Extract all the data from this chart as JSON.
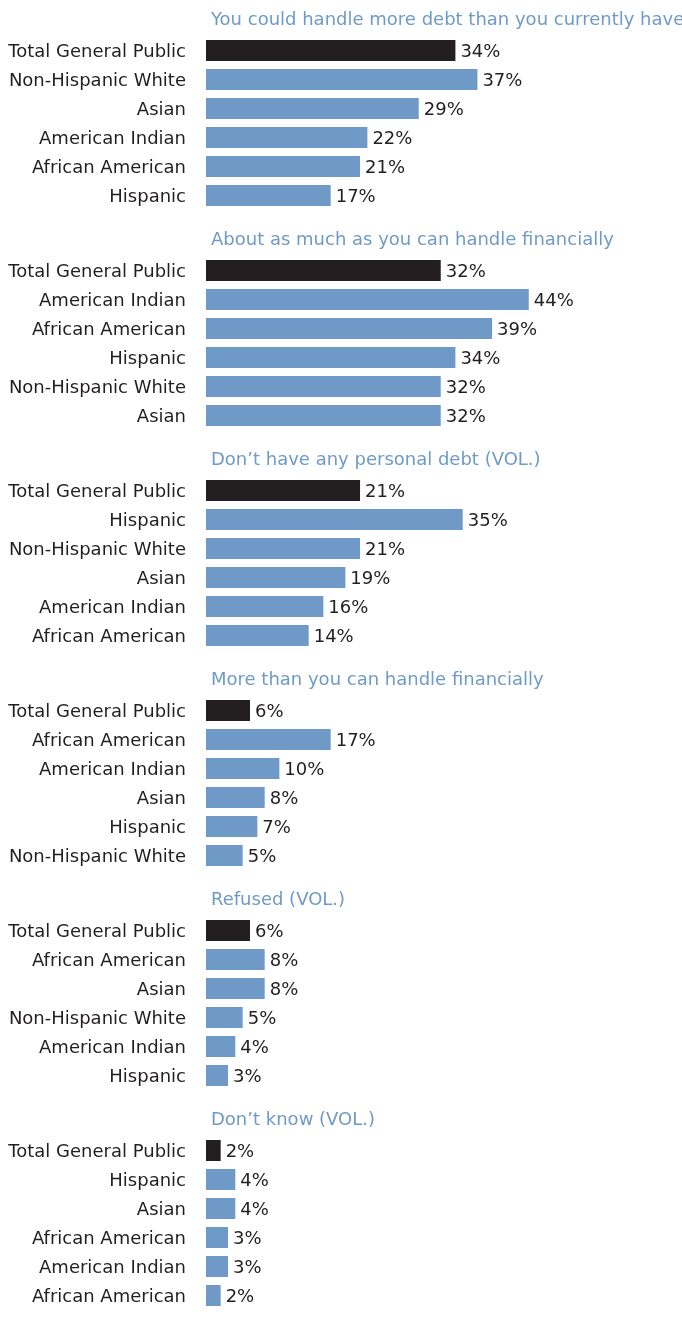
{
  "chart_data": [
    {
      "type": "bar",
      "orientation": "horizontal",
      "title": "You could handle more debt than you currently have",
      "categories": [
        "Total General Public",
        "Non-Hispanic White",
        "Asian",
        "American Indian",
        "African American",
        "Hispanic"
      ],
      "values": [
        34,
        37,
        29,
        22,
        21,
        17
      ],
      "colors": [
        "#231f20",
        "#6f9ac8",
        "#6f9ac8",
        "#6f9ac8",
        "#6f9ac8",
        "#6f9ac8"
      ],
      "value_labels": [
        "34%",
        "37%",
        "29%",
        "22%",
        "21%",
        "17%"
      ]
    },
    {
      "type": "bar",
      "orientation": "horizontal",
      "title": "About as much as you can handle financially",
      "categories": [
        "Total General Public",
        "American Indian",
        "African American",
        "Hispanic",
        "Non-Hispanic White",
        "Asian"
      ],
      "values": [
        32,
        44,
        39,
        34,
        32,
        32
      ],
      "colors": [
        "#231f20",
        "#6f9ac8",
        "#6f9ac8",
        "#6f9ac8",
        "#6f9ac8",
        "#6f9ac8"
      ],
      "value_labels": [
        "32%",
        "44%",
        "39%",
        "34%",
        "32%",
        "32%"
      ]
    },
    {
      "type": "bar",
      "orientation": "horizontal",
      "title": "Don’t have any personal debt (VOL.)",
      "categories": [
        "Total General Public",
        "Hispanic",
        "Non-Hispanic White",
        "Asian",
        "American Indian",
        "African American"
      ],
      "values": [
        21,
        35,
        21,
        19,
        16,
        14
      ],
      "colors": [
        "#231f20",
        "#6f9ac8",
        "#6f9ac8",
        "#6f9ac8",
        "#6f9ac8",
        "#6f9ac8"
      ],
      "value_labels": [
        "21%",
        "35%",
        "21%",
        "19%",
        "16%",
        "14%"
      ]
    },
    {
      "type": "bar",
      "orientation": "horizontal",
      "title": "More than you can handle financially",
      "categories": [
        "Total General Public",
        "African American",
        "American Indian",
        "Asian",
        "Hispanic",
        "Non-Hispanic White"
      ],
      "values": [
        6,
        17,
        10,
        8,
        7,
        5
      ],
      "colors": [
        "#231f20",
        "#6f9ac8",
        "#6f9ac8",
        "#6f9ac8",
        "#6f9ac8",
        "#6f9ac8"
      ],
      "value_labels": [
        "6%",
        "17%",
        "10%",
        "8%",
        "7%",
        "5%"
      ]
    },
    {
      "type": "bar",
      "orientation": "horizontal",
      "title": "Refused (VOL.)",
      "categories": [
        "Total General Public",
        "African American",
        "Asian",
        "Non-Hispanic White",
        "American Indian",
        "Hispanic"
      ],
      "values": [
        6,
        8,
        8,
        5,
        4,
        3
      ],
      "colors": [
        "#231f20",
        "#6f9ac8",
        "#6f9ac8",
        "#6f9ac8",
        "#6f9ac8",
        "#6f9ac8"
      ],
      "value_labels": [
        "6%",
        "8%",
        "8%",
        "5%",
        "4%",
        "3%"
      ]
    },
    {
      "type": "bar",
      "orientation": "horizontal",
      "title": "Don’t know (VOL.)",
      "categories": [
        "Total General Public",
        "Hispanic",
        "Asian",
        "African American",
        "American Indian",
        "African American"
      ],
      "values": [
        2,
        4,
        4,
        3,
        3,
        2
      ],
      "colors": [
        "#231f20",
        "#6f9ac8",
        "#6f9ac8",
        "#6f9ac8",
        "#6f9ac8",
        "#6f9ac8"
      ],
      "value_labels": [
        "2%",
        "4%",
        "4%",
        "3%",
        "3%",
        "2%"
      ]
    }
  ]
}
